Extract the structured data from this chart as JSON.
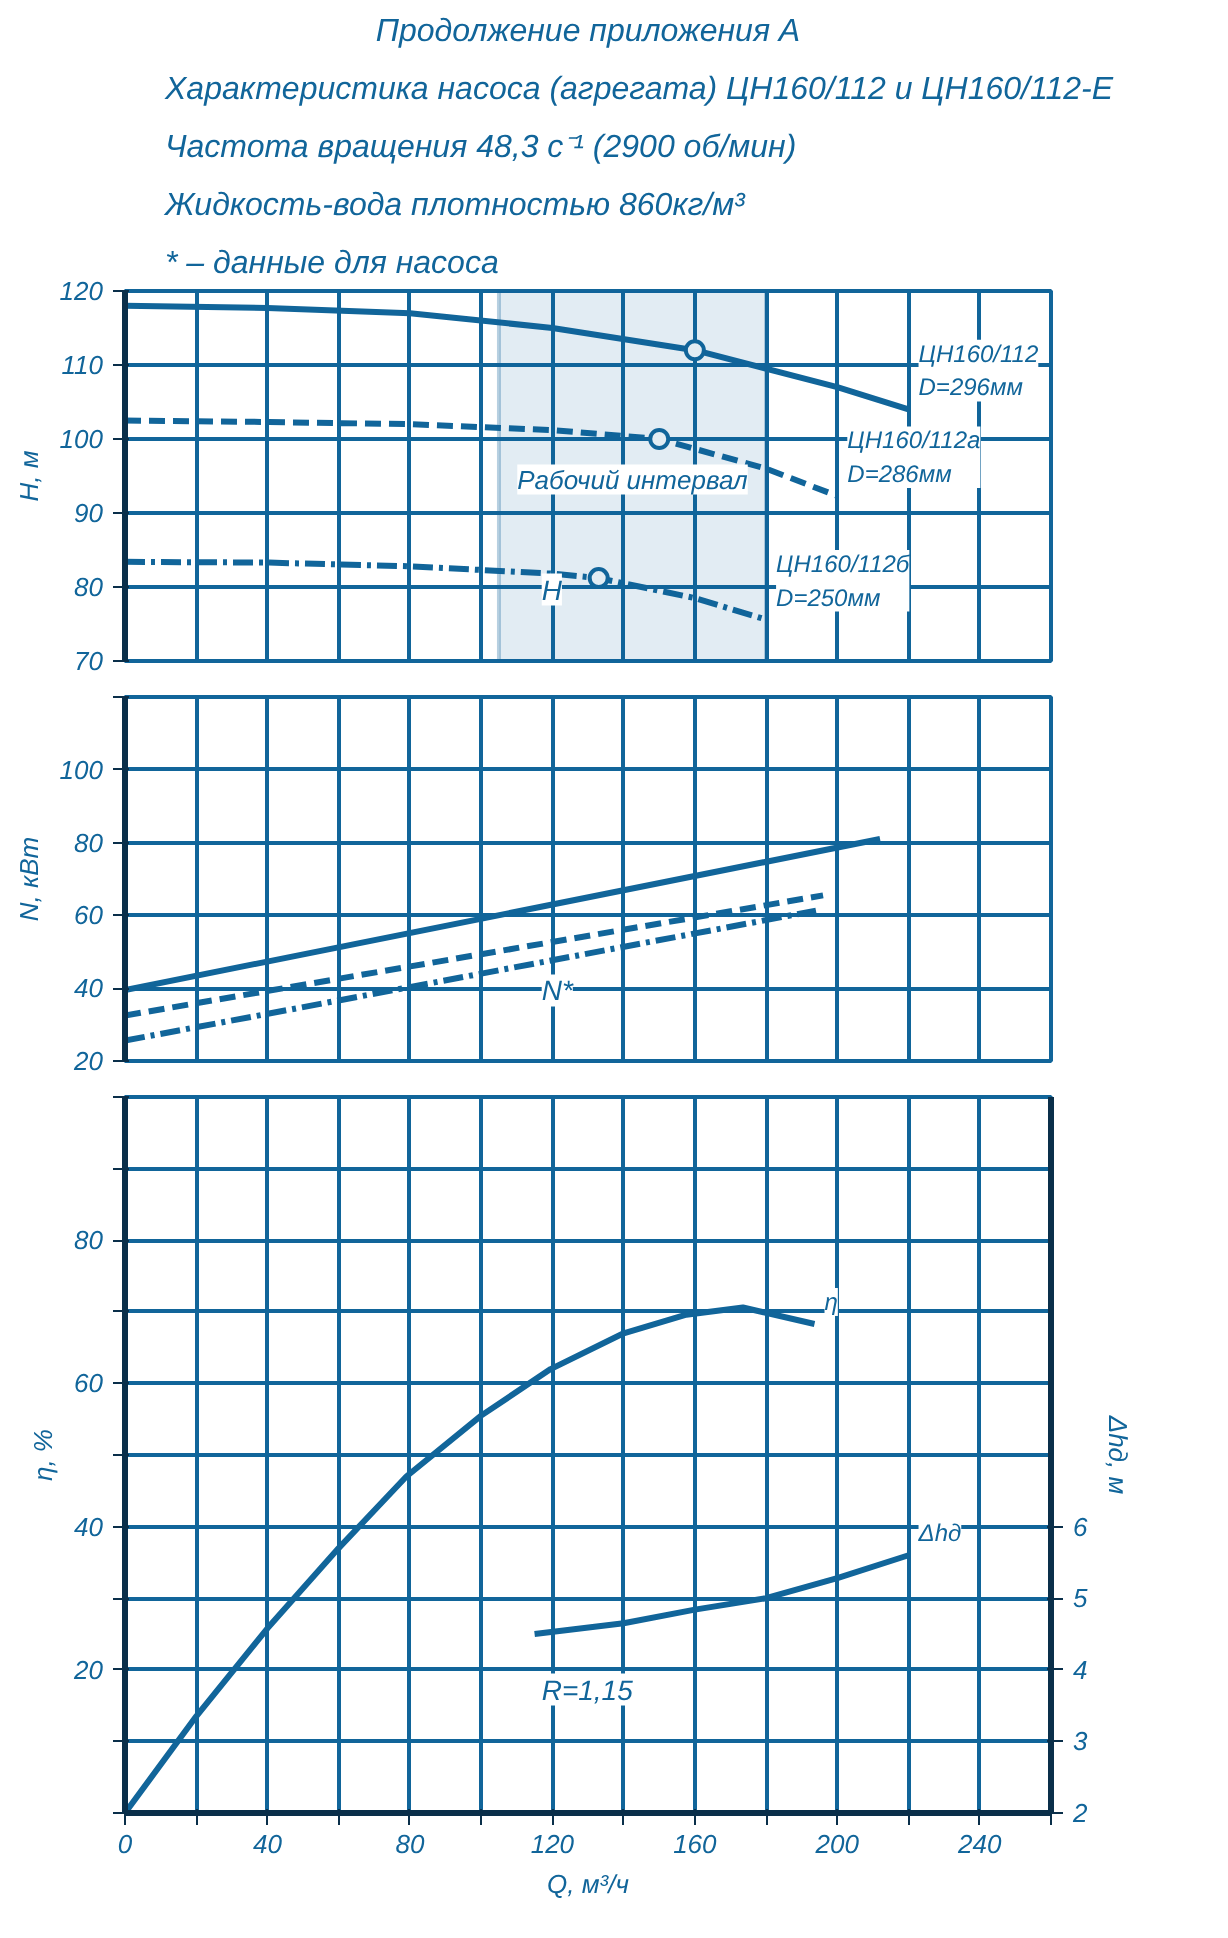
{
  "chart_data": [
    {
      "type": "line",
      "title": "Характеристика насоса (агрегата) ЦН160/112 и ЦН160/112-Е",
      "subtitle": "Частота вращения 48,3 с⁻¹ (2900 об/мин)",
      "annotations": [
        "Продолжение приложения А",
        "Жидкость-вода плотностью 860кг/м³",
        "* – данные для насоса",
        "H"
      ],
      "ylabel": "H, м",
      "xlim": [
        0,
        260
      ],
      "ylim": [
        70,
        120
      ],
      "xticks": [
        {
          "value": 0,
          "label": null
        },
        {
          "value": 20,
          "label": null
        },
        {
          "value": 40,
          "label": null
        },
        {
          "value": 60,
          "label": null
        },
        {
          "value": 80,
          "label": null
        },
        {
          "value": 100,
          "label": null
        },
        {
          "value": 120,
          "label": null
        },
        {
          "value": 140,
          "label": null
        },
        {
          "value": 160,
          "label": null
        },
        {
          "value": 180,
          "label": null
        },
        {
          "value": 200,
          "label": null
        },
        {
          "value": 220,
          "label": null
        },
        {
          "value": 240,
          "label": null
        },
        {
          "value": 260,
          "label": null
        }
      ],
      "yticks": [
        70,
        80,
        90,
        100,
        110,
        120
      ],
      "tick_labels": "y",
      "grid": true,
      "legend": false,
      "bands": [
        {
          "axis": "x",
          "from": 105,
          "to": 180,
          "label": "Рабочий интервал",
          "color": "#11659a"
        }
      ],
      "series": [
        {
          "name": "ЦН160/112\nD=296мм",
          "color": "#11659a",
          "line_style": "solid",
          "x": [
            0,
            40,
            80,
            120,
            160,
            200,
            220
          ],
          "values": [
            118,
            117.7,
            117,
            115,
            112,
            107,
            104
          ]
        },
        {
          "name": "ЦН160/112а\nD=286мм",
          "color": "#11659a",
          "line_style": "dashed",
          "x": [
            0,
            40,
            80,
            120,
            150,
            180,
            200
          ],
          "values": [
            102.5,
            102.3,
            102,
            101.2,
            100,
            96,
            92.3
          ]
        },
        {
          "name": "ЦН160/112б\nD=250мм",
          "color": "#11659a",
          "line_style": "dotted",
          "x": [
            0,
            40,
            80,
            120,
            133,
            160,
            180
          ],
          "values": [
            83.4,
            83.3,
            82.8,
            81.8,
            81.2,
            78.5,
            75.6
          ]
        },
        {
          "type": "scatter",
          "marker": "circle",
          "color": "#11659a",
          "x": [
            160,
            150,
            133
          ],
          "values": [
            112,
            100,
            81.2
          ]
        }
      ]
    },
    {
      "type": "line",
      "ylabel": "N, кВт",
      "xlim": [
        0,
        260
      ],
      "ylim": [
        20,
        120
      ],
      "xticks": [
        {
          "value": 0,
          "label": null
        },
        {
          "value": 20,
          "label": null
        },
        {
          "value": 40,
          "label": null
        },
        {
          "value": 60,
          "label": null
        },
        {
          "value": 80,
          "label": null
        },
        {
          "value": 100,
          "label": null
        },
        {
          "value": 120,
          "label": null
        },
        {
          "value": 140,
          "label": null
        },
        {
          "value": 160,
          "label": null
        },
        {
          "value": 180,
          "label": null
        },
        {
          "value": 200,
          "label": null
        },
        {
          "value": 220,
          "label": null
        },
        {
          "value": 240,
          "label": null
        },
        {
          "value": 260,
          "label": null
        }
      ],
      "yticks": [
        20,
        40,
        60,
        80,
        100,
        {
          "value": 120,
          "label": null
        }
      ],
      "tick_labels": "y",
      "grid": true,
      "legend": false,
      "annotations": [
        "N*"
      ],
      "series": [
        {
          "color": "#11659a",
          "line_style": "solid",
          "x": [
            0,
            212
          ],
          "values": [
            39.5,
            81
          ]
        },
        {
          "color": "#11659a",
          "line_style": "dashed",
          "x": [
            0,
            196
          ],
          "values": [
            32.5,
            65.5
          ]
        },
        {
          "color": "#11659a",
          "line_style": "dotted",
          "x": [
            0,
            194
          ],
          "values": [
            25.6,
            61.3
          ]
        }
      ]
    },
    {
      "type": "line",
      "ylabel": "η, %",
      "xlabel": "Q, м³/ч",
      "y2label": "Δhд, м",
      "xlim": [
        0,
        260
      ],
      "ylim": [
        0,
        100
      ],
      "y2lim": [
        2,
        12
      ],
      "xticks": [
        0,
        {
          "value": 20,
          "label": null
        },
        40,
        {
          "value": 60,
          "label": null
        },
        80,
        {
          "value": 100,
          "label": null
        },
        120,
        {
          "value": 140,
          "label": null
        },
        160,
        {
          "value": 180,
          "label": null
        },
        200,
        {
          "value": 220,
          "label": null
        },
        240,
        {
          "value": 260,
          "label": null
        }
      ],
      "yticks": [
        {
          "value": 0,
          "label": null
        },
        {
          "value": 10,
          "label": null
        },
        20,
        {
          "value": 30,
          "label": null
        },
        40,
        {
          "value": 50,
          "label": null
        },
        60,
        {
          "value": 70,
          "label": null
        },
        80,
        {
          "value": 90,
          "label": null
        },
        {
          "value": 100,
          "label": null
        }
      ],
      "y2ticks": [
        2,
        3,
        4,
        5,
        6
      ],
      "grid": true,
      "legend": false,
      "annotations": [
        "R=1,15"
      ],
      "series": [
        {
          "name": "η",
          "color": "#11659a",
          "line_style": "solid",
          "x": [
            0,
            20,
            40,
            60,
            79,
            100,
            119.5,
            140,
            157.6,
            173.5,
            193.6
          ],
          "values": [
            0,
            13.5,
            25.8,
            37,
            47,
            55.5,
            62,
            67,
            69.6,
            70.6,
            68.3
          ]
        },
        {
          "name": "Δhд",
          "color": "#11659a",
          "line_style": "solid",
          "axis": "y2",
          "x": [
            115,
            140,
            160,
            180,
            200,
            220
          ],
          "values": [
            4.5,
            4.65,
            4.84,
            5.0,
            5.28,
            5.6
          ]
        }
      ]
    }
  ]
}
